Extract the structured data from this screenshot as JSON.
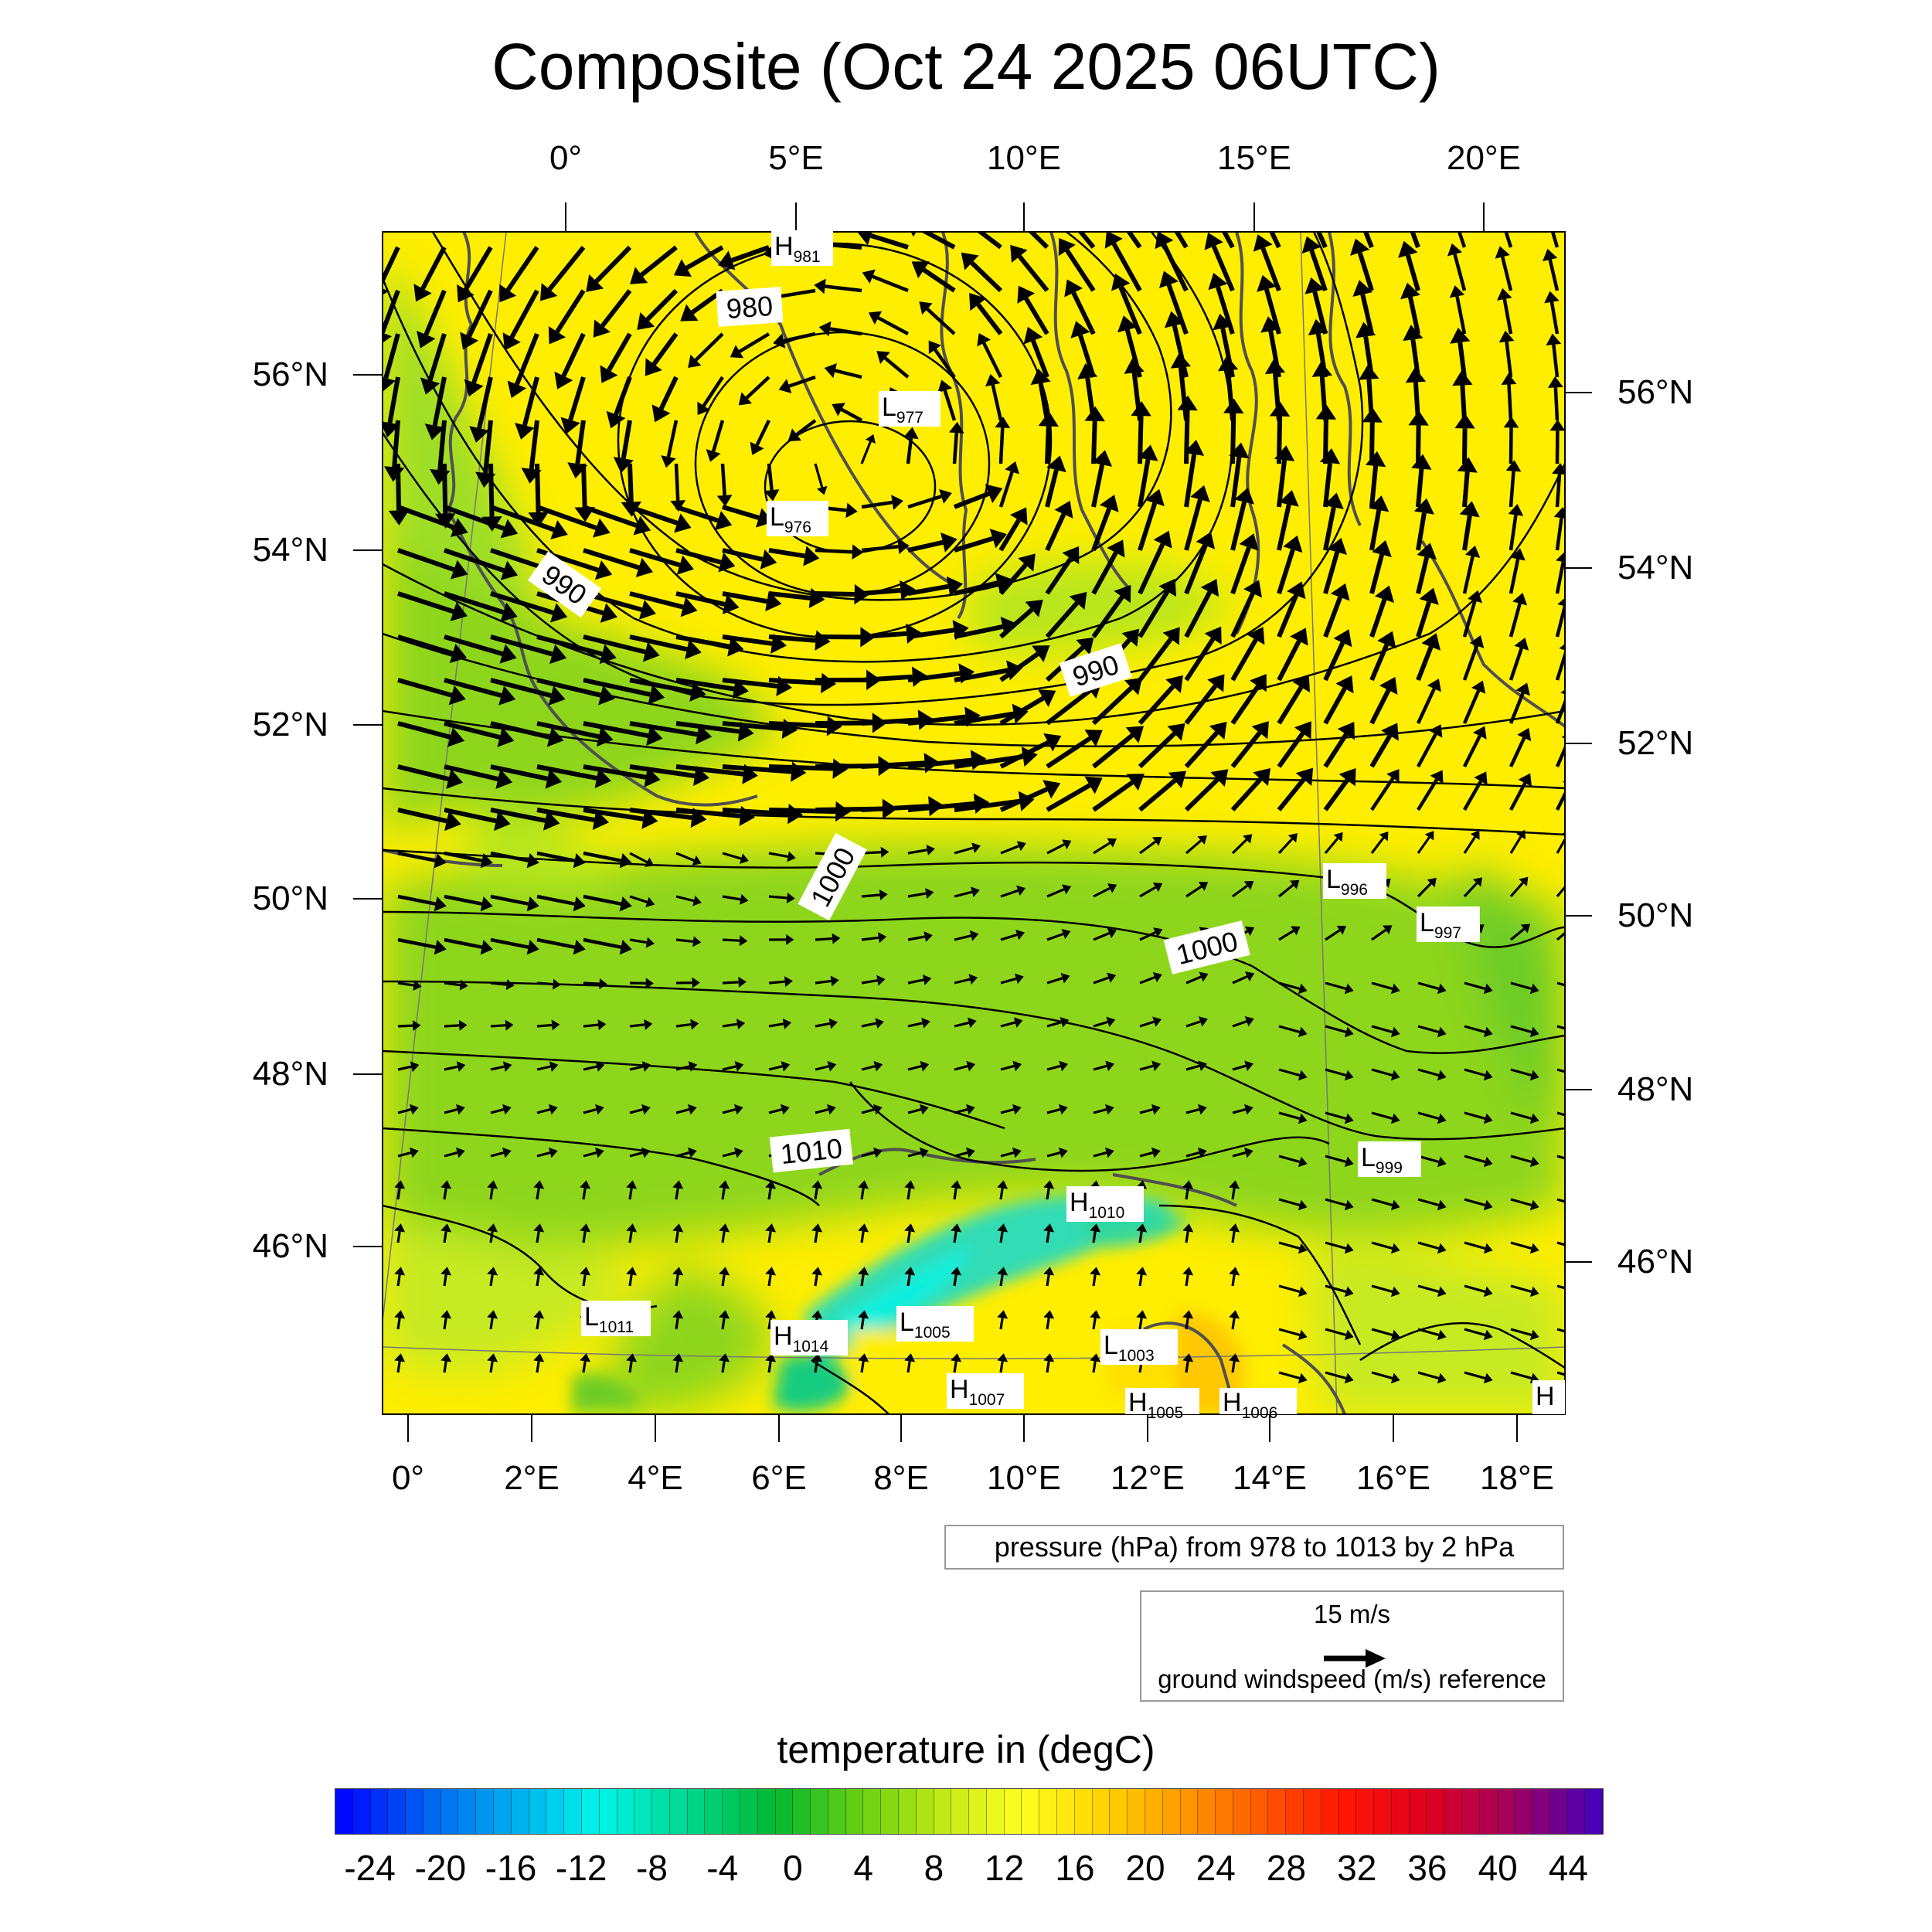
{
  "title": "Composite (Oct 24 2025 06UTC)",
  "axes": {
    "top_lon_labels": [
      "0°",
      "5°E",
      "10°E",
      "15°E",
      "20°E"
    ],
    "bottom_lon_labels": [
      "0°",
      "2°E",
      "4°E",
      "6°E",
      "8°E",
      "10°E",
      "12°E",
      "14°E",
      "16°E",
      "18°E"
    ],
    "left_lat_labels": [
      "56°N",
      "54°N",
      "52°N",
      "50°N",
      "48°N",
      "46°N"
    ],
    "right_lat_labels": [
      "56°N",
      "54°N",
      "52°N",
      "50°N",
      "48°N",
      "46°N"
    ]
  },
  "contour_labels": [
    "980",
    "990",
    "990",
    "1000",
    "1000",
    "1010"
  ],
  "pressure_centers": [
    {
      "type": "H",
      "value": "981"
    },
    {
      "type": "L",
      "value": "977"
    },
    {
      "type": "L",
      "value": "976"
    },
    {
      "type": "L",
      "value": "996"
    },
    {
      "type": "L",
      "value": "997"
    },
    {
      "type": "L",
      "value": "999"
    },
    {
      "type": "H",
      "value": "1010"
    },
    {
      "type": "L",
      "value": "1011"
    },
    {
      "type": "H",
      "value": "1014"
    },
    {
      "type": "L",
      "value": "1005"
    },
    {
      "type": "L",
      "value": "1003"
    },
    {
      "type": "H",
      "value": "1007"
    },
    {
      "type": "H",
      "value": "1005"
    },
    {
      "type": "H",
      "value": "1006"
    },
    {
      "type": "H",
      "value": ""
    }
  ],
  "pressure_legend": "pressure (hPa) from 978 to 1013 by 2 hPa",
  "vector_legend": {
    "magnitude": "15 m/s",
    "description": "ground windspeed (m/s) reference"
  },
  "colorbar": {
    "title": "temperature in (degC)",
    "labels": [
      "-24",
      "-20",
      "-16",
      "-12",
      "-8",
      "-4",
      "0",
      "4",
      "8",
      "12",
      "16",
      "20",
      "24",
      "28",
      "32",
      "36",
      "40",
      "44"
    ],
    "range": [
      -26,
      46
    ],
    "step": 1,
    "stops": [
      {
        "t": -26,
        "color": "#0000ff"
      },
      {
        "t": -20,
        "color": "#0070f0"
      },
      {
        "t": -14,
        "color": "#00c8ee"
      },
      {
        "t": -11,
        "color": "#00f5e8"
      },
      {
        "t": -6,
        "color": "#00d890"
      },
      {
        "t": -1,
        "color": "#00b830"
      },
      {
        "t": 4,
        "color": "#6cd010"
      },
      {
        "t": 9,
        "color": "#c8ec18"
      },
      {
        "t": 13,
        "color": "#ffff20"
      },
      {
        "t": 18,
        "color": "#ffd000"
      },
      {
        "t": 24,
        "color": "#ff8000"
      },
      {
        "t": 31,
        "color": "#ff1800"
      },
      {
        "t": 36,
        "color": "#e00020"
      },
      {
        "t": 41,
        "color": "#a00060"
      },
      {
        "t": 46,
        "color": "#4000c0"
      }
    ]
  },
  "colors": {
    "map_green": "#8ed61e",
    "map_yellow": "#ffef00",
    "map_cyan": "#30e0c0",
    "arrow": "#000000"
  }
}
